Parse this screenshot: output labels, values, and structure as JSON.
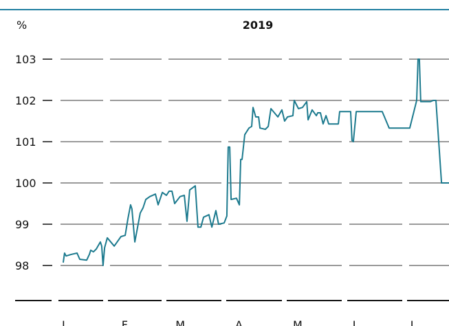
{
  "chart_data": {
    "type": "line",
    "title": "2019",
    "y_label": "%",
    "x": [
      1.4,
      2.1,
      2.9,
      5.7,
      8.6,
      10,
      13.6,
      15,
      15.7,
      17.1,
      18.6,
      20.7,
      21.4,
      22.1,
      22.9,
      24.3,
      27.9,
      31.4,
      33.6,
      35,
      36.4,
      37.1,
      38.6,
      41.4,
      42.9,
      44.3,
      46.4,
      49.3,
      50.7,
      52.9,
      55,
      56.4,
      57.9,
      59.3,
      62.1,
      64.3,
      65.7,
      67.1,
      70,
      71.4,
      72.9,
      74.3,
      77.1,
      78.6,
      80.7,
      82.1,
      85,
      86.4,
      87.1,
      87.9,
      88.6,
      91.4,
      92.9,
      93.6,
      94.3,
      95.7,
      97.9,
      99.3,
      100,
      101.4,
      102.9,
      103.6,
      106.4,
      107.9,
      109.3,
      112.9,
      115,
      116.4,
      117.9,
      120.7,
      121.4,
      123.6,
      125.7,
      127.9,
      128.6,
      130.7,
      132.9,
      133.6,
      135,
      136.4,
      137.9,
      139.3,
      144.3,
      145,
      150.7,
      151.4,
      152.1,
      153.6,
      167.1,
      170.7,
      181.4,
      185,
      185.7,
      186.4,
      187.1,
      192.1,
      193.6,
      195,
      197.9,
      202
    ],
    "series": [
      {
        "name": "2019",
        "color": "#1c7a8e",
        "values": [
          98.07,
          98.3,
          98.23,
          98.27,
          98.3,
          98.15,
          98.13,
          98.27,
          98.37,
          98.33,
          98.4,
          98.57,
          98.47,
          98.0,
          98.43,
          98.67,
          98.47,
          98.7,
          98.73,
          99.13,
          99.47,
          99.37,
          98.57,
          99.27,
          99.4,
          99.6,
          99.67,
          99.73,
          99.47,
          99.77,
          99.7,
          99.8,
          99.8,
          99.5,
          99.67,
          99.7,
          99.07,
          99.83,
          99.93,
          98.93,
          98.93,
          99.17,
          99.23,
          98.93,
          99.33,
          99.0,
          99.03,
          99.2,
          100.87,
          100.87,
          99.6,
          99.63,
          99.47,
          100.57,
          100.57,
          101.17,
          101.33,
          101.37,
          101.83,
          101.6,
          101.6,
          101.33,
          101.3,
          101.37,
          101.8,
          101.6,
          101.77,
          101.5,
          101.6,
          101.63,
          102.0,
          101.8,
          101.83,
          101.97,
          101.53,
          101.77,
          101.63,
          101.7,
          101.7,
          101.43,
          101.63,
          101.43,
          101.43,
          101.73,
          101.73,
          101.03,
          101.0,
          101.73,
          101.73,
          101.33,
          101.33,
          102.0,
          103.0,
          103.0,
          101.97,
          101.97,
          102.0,
          102.0,
          100.0,
          100.0
        ]
      }
    ],
    "xlim": [
      0,
      202
    ],
    "xticks": [
      {
        "value": 0,
        "label": "J"
      },
      {
        "value": 31,
        "label": "F"
      },
      {
        "value": 59,
        "label": "M"
      },
      {
        "value": 90,
        "label": "A"
      },
      {
        "value": 120,
        "label": "M"
      },
      {
        "value": 151,
        "label": "J"
      },
      {
        "value": 181,
        "label": "J"
      }
    ],
    "ylim": [
      97.2,
      103.4
    ],
    "yticks": [
      98,
      99,
      100,
      101,
      102,
      103
    ],
    "grid": true
  }
}
